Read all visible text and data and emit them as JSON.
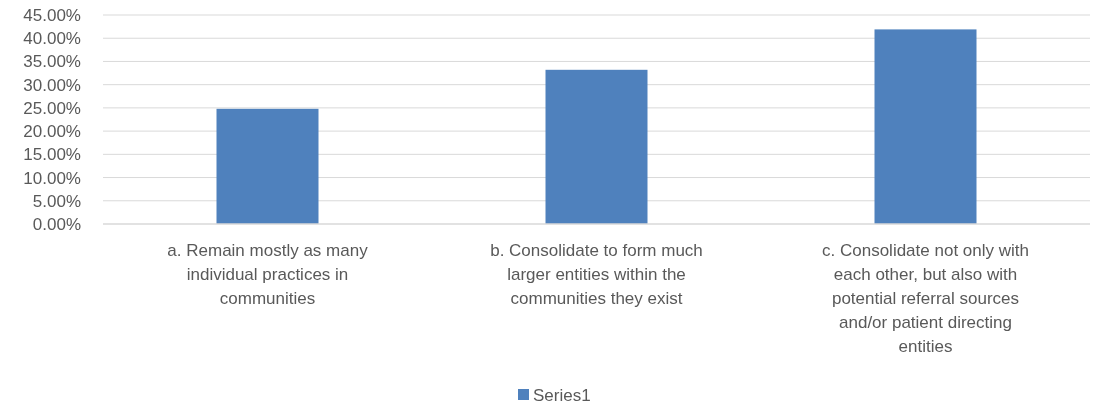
{
  "chart_data": {
    "type": "bar",
    "categories": [
      "a. Remain mostly as many individual practices in communities",
      "b. Consolidate to form much larger entities within the communities they exist",
      "c. Consolidate not only with each other, but also with potential referral sources and/or patient directing entities"
    ],
    "series": [
      {
        "name": "Series1",
        "color": "#4f81bd",
        "values": [
          0.248,
          0.332,
          0.419
        ]
      }
    ],
    "ylim": [
      0,
      0.45
    ],
    "yticks": [
      {
        "value": 0,
        "label": "0.00%"
      },
      {
        "value": 0.05,
        "label": "5.00%"
      },
      {
        "value": 0.1,
        "label": "10.00%"
      },
      {
        "value": 0.15,
        "label": "15.00%"
      },
      {
        "value": 0.2,
        "label": "20.00%"
      },
      {
        "value": 0.25,
        "label": "25.00%"
      },
      {
        "value": 0.3,
        "label": "30.00%"
      },
      {
        "value": 0.35,
        "label": "35.00%"
      },
      {
        "value": 0.4,
        "label": "40.00%"
      },
      {
        "value": 0.45,
        "label": "45.00%"
      }
    ],
    "grid": true,
    "legend": "bottom"
  }
}
